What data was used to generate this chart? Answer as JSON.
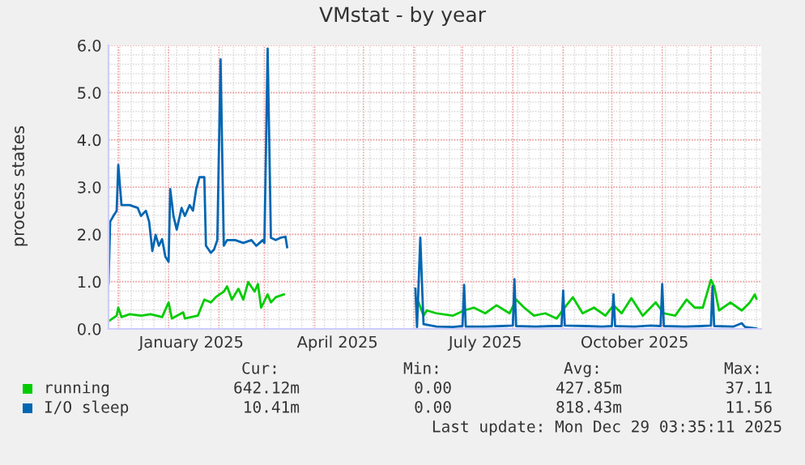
{
  "chart_data": {
    "type": "line",
    "title": "VMstat - by year",
    "ylabel": "process states",
    "xlim": [
      "2024-11-25",
      "2026-01-01"
    ],
    "xticks": [
      {
        "value": "2025-01-15",
        "label": "January 2025"
      },
      {
        "value": "2025-04-15",
        "label": "April 2025"
      },
      {
        "value": "2025-07-15",
        "label": "July 2025"
      },
      {
        "value": "2025-10-15",
        "label": "October 2025"
      }
    ],
    "ylim": [
      0,
      6
    ],
    "yticks": [
      {
        "value": 0,
        "label": "0.0"
      },
      {
        "value": 1,
        "label": "1.0"
      },
      {
        "value": 2,
        "label": "2.0"
      },
      {
        "value": 3,
        "label": "3.0"
      },
      {
        "value": 4,
        "label": "4.0"
      },
      {
        "value": 5,
        "label": "5.0"
      },
      {
        "value": 6,
        "label": "6.0"
      }
    ],
    "grid": true,
    "legend": "bottom",
    "marker": "none",
    "line_style": "solid",
    "series": [
      {
        "name": "running",
        "color": "#00cc00",
        "x": [
          "2024-11-25",
          "2024-11-30",
          "2024-12-01",
          "2024-12-03",
          "2024-12-08",
          "2024-12-15",
          "2024-12-21",
          "2024-12-28",
          "2025-01-01",
          "2025-01-03",
          "2025-01-10",
          "2025-01-11",
          "2025-01-19",
          "2025-01-23",
          "2025-01-27",
          "2025-01-30",
          "2025-02-04",
          "2025-02-06",
          "2025-02-09",
          "2025-02-13",
          "2025-02-16",
          "2025-02-19",
          "2025-02-23",
          "2025-02-25",
          "2025-02-27",
          "2025-03-03",
          "2025-03-05",
          "2025-03-08",
          "2025-03-13",
          "2025-04-15",
          "2025-06-04",
          "2025-06-07",
          "2025-06-09",
          "2025-06-15",
          "2025-06-25",
          "2025-07-02",
          "2025-07-08",
          "2025-07-15",
          "2025-07-22",
          "2025-07-30",
          "2025-08-03",
          "2025-08-08",
          "2025-08-14",
          "2025-08-21",
          "2025-08-28",
          "2025-09-03",
          "2025-09-07",
          "2025-09-13",
          "2025-09-20",
          "2025-09-27",
          "2025-10-02",
          "2025-10-07",
          "2025-10-13",
          "2025-10-20",
          "2025-10-28",
          "2025-11-02",
          "2025-11-09",
          "2025-11-16",
          "2025-11-21",
          "2025-11-26",
          "2025-12-01",
          "2025-12-03",
          "2025-12-06",
          "2025-12-13",
          "2025-12-20",
          "2025-12-25",
          "2025-12-28",
          "2025-12-29"
        ],
        "values": [
          0.16,
          0.28,
          0.45,
          0.25,
          0.31,
          0.28,
          0.31,
          0.25,
          0.56,
          0.22,
          0.35,
          0.22,
          0.28,
          0.62,
          0.56,
          0.67,
          0.79,
          0.9,
          0.62,
          0.85,
          0.62,
          0.99,
          0.79,
          0.95,
          0.45,
          0.73,
          0.56,
          0.67,
          0.73,
          null,
          0.56,
          0.28,
          0.39,
          0.33,
          0.28,
          0.39,
          0.45,
          0.33,
          0.5,
          0.33,
          0.62,
          0.45,
          0.28,
          0.33,
          0.22,
          0.5,
          0.67,
          0.33,
          0.45,
          0.28,
          0.5,
          0.33,
          0.65,
          0.28,
          0.56,
          0.33,
          0.28,
          0.62,
          0.45,
          0.45,
          1.04,
          0.9,
          0.39,
          0.56,
          0.39,
          0.56,
          0.73,
          0.64
        ]
      },
      {
        "name": "I/O sleep",
        "color": "#0066b3",
        "x": [
          "2024-11-25",
          "2024-11-26",
          "2024-11-28",
          "2024-11-30",
          "2024-12-01",
          "2024-12-03",
          "2024-12-08",
          "2024-12-13",
          "2024-12-15",
          "2024-12-18",
          "2024-12-20",
          "2024-12-22",
          "2024-12-24",
          "2024-12-26",
          "2024-12-28",
          "2024-12-30",
          "2025-01-01",
          "2025-01-02",
          "2025-01-04",
          "2025-01-06",
          "2025-01-09",
          "2025-01-11",
          "2025-01-14",
          "2025-01-16",
          "2025-01-18",
          "2025-01-20",
          "2025-01-23",
          "2025-01-24",
          "2025-01-27",
          "2025-01-29",
          "2025-01-31",
          "2025-02-02",
          "2025-02-04",
          "2025-02-06",
          "2025-02-11",
          "2025-02-16",
          "2025-02-21",
          "2025-02-24",
          "2025-02-28",
          "2025-03-01",
          "2025-03-03",
          "2025-03-05",
          "2025-03-08",
          "2025-03-11",
          "2025-03-14",
          "2025-03-15",
          "2025-04-15",
          "2025-06-02",
          "2025-06-03",
          "2025-06-05",
          "2025-06-07",
          "2025-06-15",
          "2025-06-25",
          "2025-07-01",
          "2025-07-02",
          "2025-07-03",
          "2025-07-15",
          "2025-07-25",
          "2025-08-01",
          "2025-08-02",
          "2025-08-03",
          "2025-08-15",
          "2025-08-25",
          "2025-08-31",
          "2025-09-01",
          "2025-09-02",
          "2025-09-15",
          "2025-09-25",
          "2025-10-01",
          "2025-10-02",
          "2025-10-03",
          "2025-10-15",
          "2025-10-25",
          "2025-10-31",
          "2025-11-01",
          "2025-11-02",
          "2025-11-15",
          "2025-11-25",
          "2025-12-01",
          "2025-12-02",
          "2025-12-03",
          "2025-12-15",
          "2025-12-20",
          "2025-12-22",
          "2025-12-29"
        ],
        "values": [
          0.96,
          2.27,
          2.39,
          2.5,
          3.47,
          2.62,
          2.62,
          2.56,
          2.39,
          2.5,
          2.27,
          1.65,
          1.99,
          1.76,
          1.9,
          1.53,
          1.42,
          2.96,
          2.39,
          2.1,
          2.56,
          2.39,
          2.62,
          2.5,
          2.96,
          3.21,
          3.21,
          1.76,
          1.61,
          1.68,
          1.88,
          5.7,
          1.76,
          1.88,
          1.88,
          1.82,
          1.88,
          1.76,
          1.88,
          1.82,
          5.93,
          1.93,
          1.88,
          1.93,
          1.95,
          1.73,
          null,
          0.85,
          0.04,
          1.93,
          0.1,
          0.05,
          0.04,
          0.06,
          0.93,
          0.05,
          0.05,
          0.06,
          0.07,
          1.05,
          0.06,
          0.05,
          0.06,
          0.06,
          0.81,
          0.07,
          0.06,
          0.05,
          0.06,
          0.73,
          0.06,
          0.05,
          0.07,
          0.06,
          0.95,
          0.06,
          0.05,
          0.06,
          0.07,
          0.9,
          0.06,
          0.05,
          0.12,
          0.04,
          0.01
        ]
      }
    ],
    "annotations": [
      "Cur:",
      "Min:",
      "Avg:",
      "Max:",
      "642.12m",
      "0.00",
      "427.85m",
      "37.11",
      "10.41m",
      "0.00",
      "818.43m",
      "11.56",
      "Last update: Mon Dec 29 03:35:11 2025"
    ]
  }
}
